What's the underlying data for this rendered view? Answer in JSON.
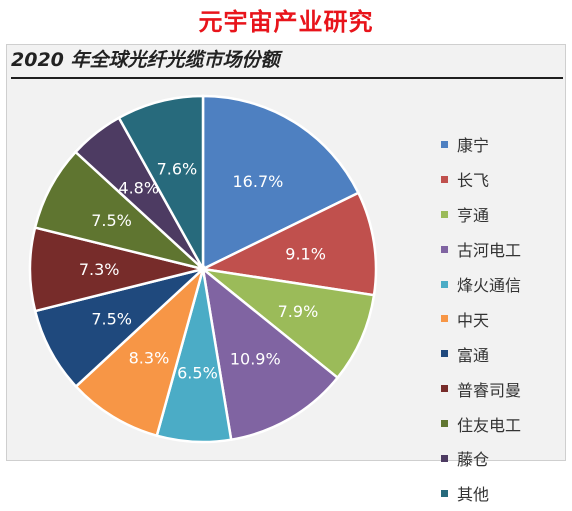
{
  "watermark": "元宇宙产业研究",
  "chart_data": {
    "type": "pie",
    "title": "2020 年全球光纤光缆市场份额",
    "legend_position": "right",
    "slices": [
      {
        "name": "康宁",
        "value": 16.7,
        "label": "16.7%",
        "color": "#4e80c1"
      },
      {
        "name": "长飞",
        "value": 9.1,
        "label": "9.1%",
        "color": "#c0504d"
      },
      {
        "name": "亨通",
        "value": 7.9,
        "label": "7.9%",
        "color": "#9bbb59"
      },
      {
        "name": "古河电工",
        "value": 10.9,
        "label": "10.9%",
        "color": "#8064a2"
      },
      {
        "name": "烽火通信",
        "value": 6.5,
        "label": "6.5%",
        "color": "#4bacc6"
      },
      {
        "name": "中天",
        "value": 8.3,
        "label": "8.3%",
        "color": "#f79646"
      },
      {
        "name": "富通",
        "value": 7.5,
        "label": "7.5%",
        "color": "#1f497d"
      },
      {
        "name": "普睿司曼",
        "value": 7.3,
        "label": "7.3%",
        "color": "#772c2a"
      },
      {
        "name": "住友电工",
        "value": 7.5,
        "label": "7.5%",
        "color": "#5f7530"
      },
      {
        "name": "藤仓",
        "value": 4.8,
        "label": "4.8%",
        "color": "#4d3b62"
      },
      {
        "name": "其他",
        "value": 7.6,
        "label": "7.6%",
        "color": "#276a7c"
      }
    ]
  }
}
